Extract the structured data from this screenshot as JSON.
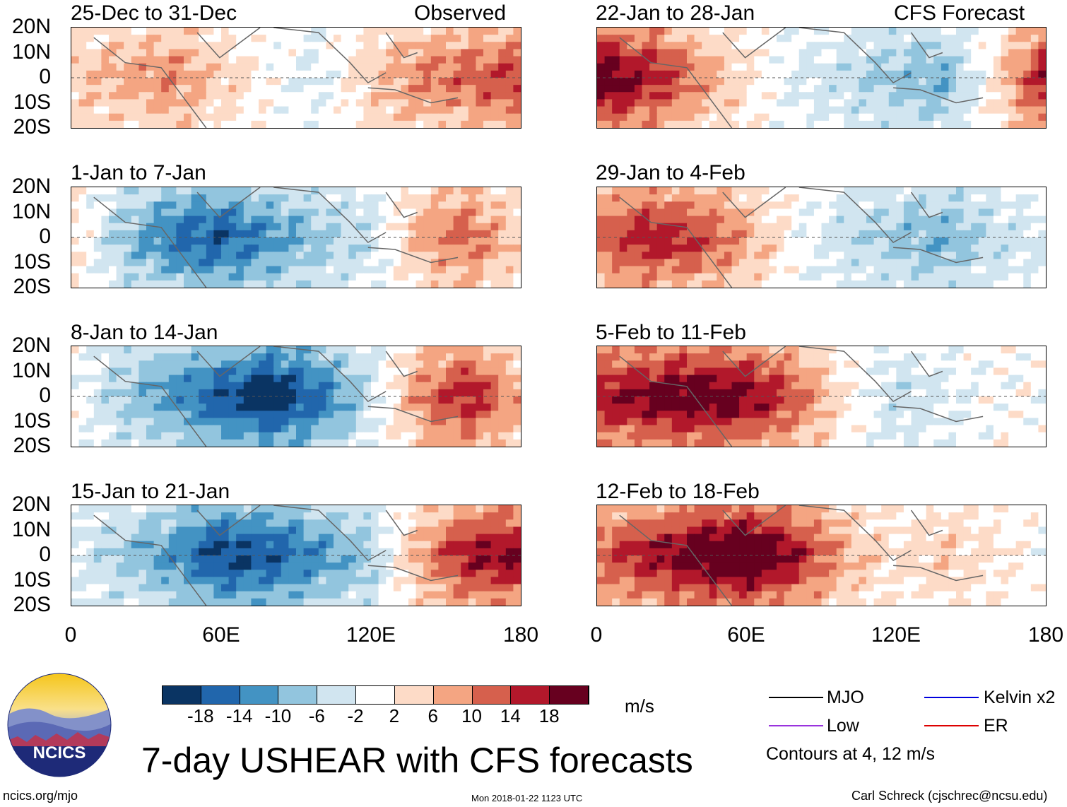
{
  "title": "7-day USHEAR with CFS forecasts",
  "logo": {
    "text": "NCICS"
  },
  "footer": {
    "left": "ncics.org/mjo",
    "center": "Mon 2018-01-22 1123 UTC",
    "right": "Carl Schreck (cjschrec@ncsu.edu)"
  },
  "colorbar": {
    "units": "m/s",
    "colors": [
      "#0a3463",
      "#2166ac",
      "#4393c3",
      "#92c5de",
      "#d1e5f0",
      "#ffffff",
      "#fddbc7",
      "#f4a582",
      "#d6604d",
      "#b2182b",
      "#67001f"
    ],
    "ticks": [
      "-18",
      "-14",
      "-10",
      "-6",
      "-2",
      "2",
      "6",
      "10",
      "14",
      "18"
    ]
  },
  "legend": {
    "items": [
      {
        "label": "MJO",
        "color": "#000000"
      },
      {
        "label": "Kelvin x2",
        "color": "#0000dd"
      },
      {
        "label": "Low",
        "color": "#9933dd"
      },
      {
        "label": "ER",
        "color": "#dd0000"
      }
    ],
    "note": "Contours at 4, 12 m/s"
  },
  "chart_data": {
    "type": "heatmap",
    "variable": "USHEAR",
    "units": "m/s",
    "x_ticks": [
      "0",
      "60E",
      "120E",
      "180"
    ],
    "y_ticks": [
      "20N",
      "10N",
      "0",
      "10S",
      "20S"
    ],
    "xlim": [
      0,
      180
    ],
    "ylim": [
      -20,
      20
    ],
    "left_column_label": "Observed",
    "right_column_label": "CFS Forecast",
    "panels": [
      {
        "title": "25-Dec to 31-Dec",
        "column": "observed",
        "lon_mean_ushear": [
          4,
          6,
          8,
          4,
          0,
          -2,
          4,
          8,
          10,
          12
        ]
      },
      {
        "title": "1-Jan to 7-Jan",
        "column": "observed",
        "lon_mean_ushear": [
          2,
          -6,
          -12,
          -14,
          -10,
          -6,
          -4,
          6,
          10,
          4
        ]
      },
      {
        "title": "8-Jan to 14-Jan",
        "column": "observed",
        "lon_mean_ushear": [
          0,
          -6,
          -10,
          -14,
          -18,
          -12,
          -4,
          8,
          14,
          6
        ]
      },
      {
        "title": "15-Jan to 21-Jan",
        "column": "observed",
        "lon_mean_ushear": [
          -2,
          -6,
          -10,
          -16,
          -14,
          -10,
          -6,
          6,
          14,
          16
        ]
      },
      {
        "title": "22-Jan to 28-Jan",
        "column": "forecast",
        "lon_mean_ushear": [
          18,
          14,
          8,
          2,
          -2,
          -4,
          -6,
          -8,
          2,
          14
        ]
      },
      {
        "title": "29-Jan to 4-Feb",
        "column": "forecast",
        "lon_mean_ushear": [
          10,
          14,
          12,
          6,
          0,
          -4,
          -6,
          -8,
          -4,
          -2
        ]
      },
      {
        "title": "5-Feb to 11-Feb",
        "column": "forecast",
        "lon_mean_ushear": [
          14,
          16,
          18,
          16,
          10,
          2,
          -4,
          -2,
          0,
          0
        ]
      },
      {
        "title": "12-Feb to 18-Feb",
        "column": "forecast",
        "lon_mean_ushear": [
          10,
          14,
          18,
          20,
          14,
          6,
          2,
          4,
          2,
          0
        ]
      }
    ]
  }
}
